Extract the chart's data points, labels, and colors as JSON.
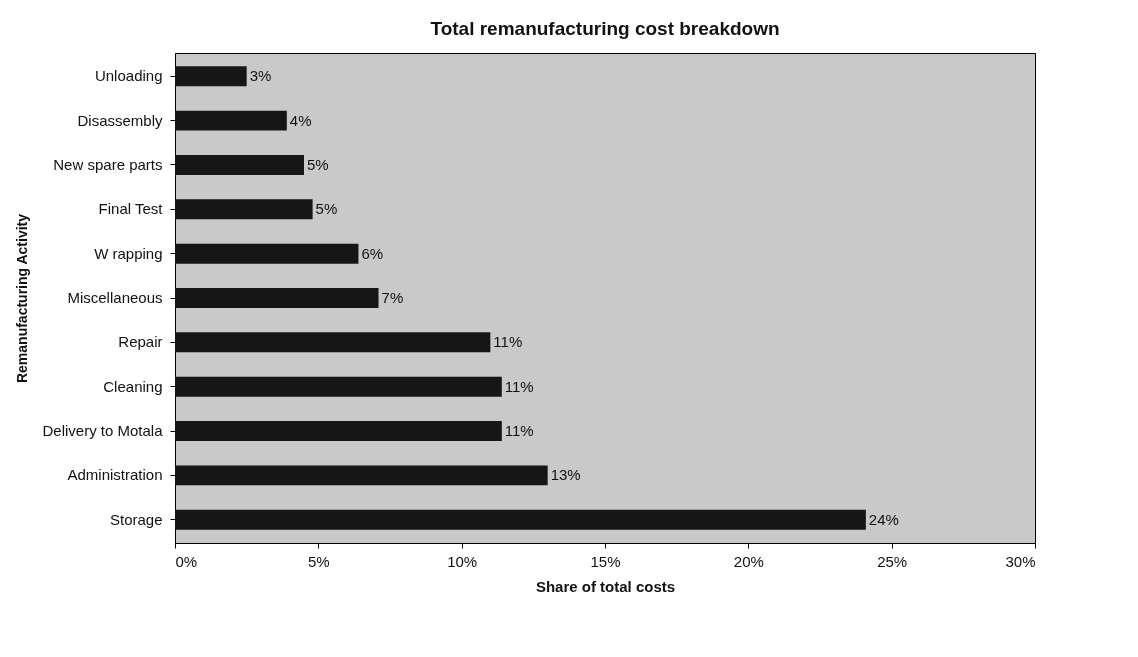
{
  "chart_data": {
    "type": "bar",
    "orientation": "horizontal",
    "title": "Total remanufacturing cost breakdown",
    "xlabel": "Share of total costs",
    "ylabel": "Remanufacturing Activity",
    "categories": [
      "Unloading",
      "Disassembly",
      "New spare parts",
      "Final Test",
      "W rapping",
      "Miscellaneous",
      "Repair",
      "Cleaning",
      "Delivery to Motala",
      "Administration",
      "Storage"
    ],
    "values": [
      2.5,
      3.9,
      4.5,
      4.8,
      6.4,
      7.1,
      11.0,
      11.4,
      11.4,
      13.0,
      24.1
    ],
    "value_labels": [
      "3%",
      "4%",
      "5%",
      "5%",
      "6%",
      "7%",
      "11%",
      "11%",
      "11%",
      "13%",
      "24%"
    ],
    "color": "#161616",
    "xlim": [
      0,
      30
    ],
    "xticks": [
      {
        "value": 0,
        "label": "0%"
      },
      {
        "value": 5,
        "label": "5%"
      },
      {
        "value": 10,
        "label": "10%"
      },
      {
        "value": 15,
        "label": "15%"
      },
      {
        "value": 20,
        "label": "20%"
      },
      {
        "value": 25,
        "label": "25%"
      },
      {
        "value": 30,
        "label": "30%"
      }
    ],
    "grid": false
  }
}
